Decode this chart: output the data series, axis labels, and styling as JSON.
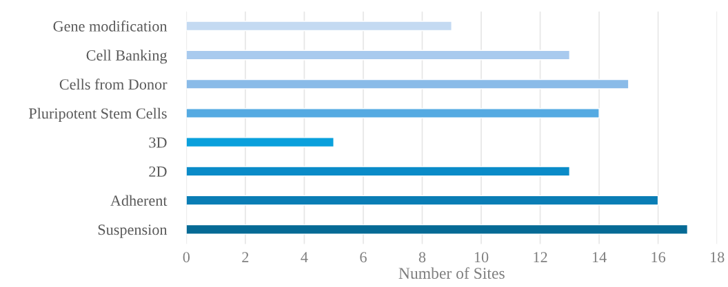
{
  "chart_data": {
    "type": "bar",
    "orientation": "horizontal",
    "xlabel": "Number of Sites",
    "categories": [
      "Gene modification",
      "Cell Banking",
      "Cells from Donor",
      "Pluripotent Stem Cells",
      "3D",
      "2D",
      "Adherent",
      "Suspension"
    ],
    "values": [
      9,
      13,
      15,
      14,
      5,
      13,
      16,
      17
    ],
    "colors": [
      "#c4daf2",
      "#a8caee",
      "#8abbe8",
      "#55aae2",
      "#0aa0dc",
      "#0a8bc8",
      "#0a7db5",
      "#066a95"
    ],
    "xlim": [
      0,
      18
    ],
    "xticks": [
      0,
      2,
      4,
      6,
      8,
      10,
      12,
      14,
      16,
      18
    ],
    "grid": "x",
    "legend": false
  }
}
